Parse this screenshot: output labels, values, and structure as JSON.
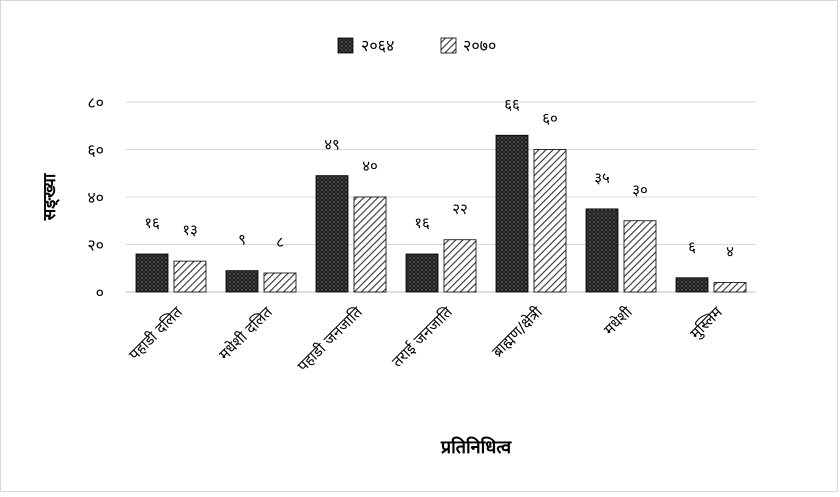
{
  "chart_data": {
    "type": "bar",
    "title": "",
    "xlabel": "प्रतिनिधित्व",
    "ylabel": "सङ्ख्या",
    "ylim": [
      0,
      80
    ],
    "yticks": [
      0,
      20,
      40,
      60,
      80
    ],
    "ytick_labels": [
      "०",
      "२०",
      "४०",
      "६०",
      "८०"
    ],
    "grid": true,
    "legend_position": "top",
    "categories": [
      "पहाडी दलित",
      "मधेशी दलित",
      "पहाडी जनजाति",
      "तराई जनजाति",
      "ब्राह्मण/क्षेत्री",
      "मधेशी",
      "मुस्लिम"
    ],
    "series": [
      {
        "name": "२०६४",
        "pattern": "dotted-dark",
        "color": "#2b2b2b",
        "values": [
          16,
          9,
          49,
          16,
          66,
          35,
          6
        ],
        "labels": [
          "१६",
          "९",
          "४९",
          "१६",
          "६६",
          "३५",
          "६"
        ]
      },
      {
        "name": "२०७०",
        "pattern": "diagonal-hatch",
        "color": "#404040",
        "values": [
          13,
          8,
          40,
          22,
          60,
          30,
          4
        ],
        "labels": [
          "१३",
          "८",
          "४०",
          "२२",
          "६०",
          "३०",
          "४"
        ]
      }
    ]
  }
}
